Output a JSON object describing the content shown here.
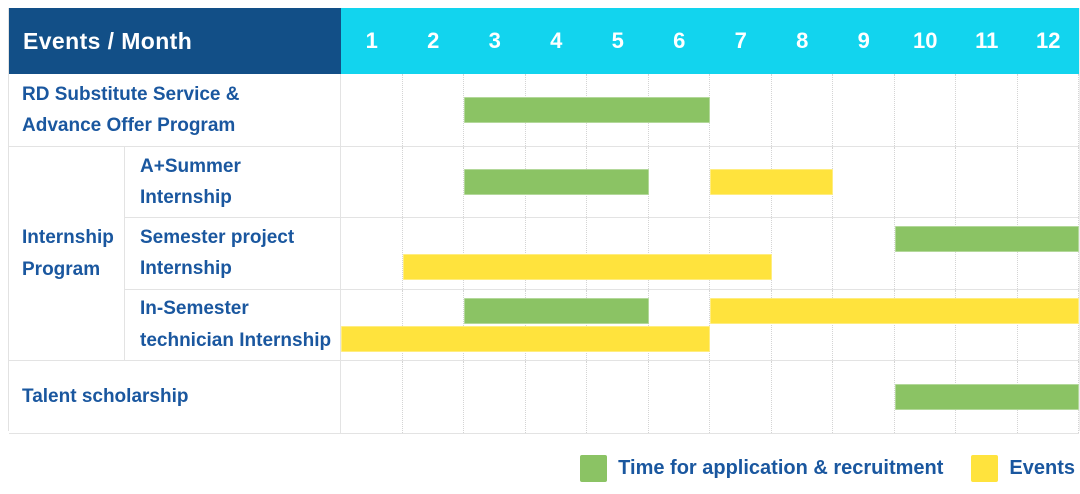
{
  "table": {
    "header": {
      "label": "Events / Month",
      "months": [
        "1",
        "2",
        "3",
        "4",
        "5",
        "6",
        "7",
        "8",
        "9",
        "10",
        "11",
        "12"
      ]
    },
    "rows": [
      {
        "kind": "simple",
        "id": "rd-substitute-service",
        "label_lines": [
          "RD Substitute Service &",
          "Advance Offer Program"
        ],
        "bars": [
          {
            "type": "application",
            "color": "green",
            "lane": "center",
            "start_month": 3,
            "end_month": 6
          }
        ]
      },
      {
        "kind": "group",
        "id": "internship-program",
        "label_lines": [
          "Internship",
          "Program"
        ],
        "children": [
          {
            "id": "a-plus-summer-internship",
            "label_lines": [
              "A+Summer",
              "Internship"
            ],
            "bars": [
              {
                "type": "application",
                "color": "green",
                "lane": "center",
                "start_month": 3,
                "end_month": 5
              },
              {
                "type": "event",
                "color": "yellow",
                "lane": "center",
                "start_month": 7,
                "end_month": 8
              }
            ]
          },
          {
            "id": "semester-project-internship",
            "label_lines": [
              "Semester project",
              "Internship"
            ],
            "bars": [
              {
                "type": "application",
                "color": "green",
                "lane": "top",
                "start_month": 10,
                "end_month": 12
              },
              {
                "type": "event",
                "color": "yellow",
                "lane": "bottom",
                "start_month": 2,
                "end_month": 7
              }
            ]
          },
          {
            "id": "in-semester-technician-internship",
            "label_lines": [
              "In-Semester",
              "technician Internship"
            ],
            "bars": [
              {
                "type": "application",
                "color": "green",
                "lane": "top",
                "start_month": 3,
                "end_month": 5
              },
              {
                "type": "event",
                "color": "yellow",
                "lane": "top",
                "start_month": 7,
                "end_month": 12
              },
              {
                "type": "event",
                "color": "yellow",
                "lane": "bottom",
                "start_month": 1,
                "end_month": 6
              }
            ]
          }
        ]
      },
      {
        "kind": "simple",
        "id": "talent-scholarship",
        "label_lines": [
          "Talent scholarship"
        ],
        "bars": [
          {
            "type": "application",
            "color": "green",
            "lane": "center",
            "start_month": 10,
            "end_month": 12
          }
        ]
      }
    ]
  },
  "legend": {
    "items": [
      {
        "color": "green",
        "label": "Time for application & recruitment"
      },
      {
        "color": "yellow",
        "label": "Events"
      }
    ]
  },
  "colors": {
    "header_bg": "#124f87",
    "months_bg": "#12d4ee",
    "green": "#8bc364",
    "yellow": "#ffe33d",
    "label_text": "#1a579f",
    "grid": "#e3e3e3"
  },
  "chart_data": {
    "type": "table",
    "title": "Events / Month",
    "x_axis": {
      "label": "Month",
      "ticks": [
        1,
        2,
        3,
        4,
        5,
        6,
        7,
        8,
        9,
        10,
        11,
        12
      ],
      "range": [
        1,
        12
      ]
    },
    "legend": [
      "Time for application & recruitment",
      "Events"
    ],
    "rows": [
      {
        "name": "RD Substitute Service & Advance Offer Program",
        "group": null,
        "spans": [
          {
            "series": "Time for application & recruitment",
            "months": [
              3,
              6
            ]
          }
        ]
      },
      {
        "name": "A+Summer Internship",
        "group": "Internship Program",
        "spans": [
          {
            "series": "Time for application & recruitment",
            "months": [
              3,
              5
            ]
          },
          {
            "series": "Events",
            "months": [
              7,
              8
            ]
          }
        ]
      },
      {
        "name": "Semester project Internship",
        "group": "Internship Program",
        "spans": [
          {
            "series": "Time for application & recruitment",
            "months": [
              10,
              12
            ]
          },
          {
            "series": "Events",
            "months": [
              2,
              7
            ]
          }
        ]
      },
      {
        "name": "In-Semester technician Internship",
        "group": "Internship Program",
        "spans": [
          {
            "series": "Time for application & recruitment",
            "months": [
              3,
              5
            ]
          },
          {
            "series": "Events",
            "months": [
              7,
              12
            ]
          },
          {
            "series": "Events",
            "months": [
              1,
              6
            ]
          }
        ]
      },
      {
        "name": "Talent scholarship",
        "group": null,
        "spans": [
          {
            "series": "Time for application & recruitment",
            "months": [
              10,
              12
            ]
          }
        ]
      }
    ]
  }
}
